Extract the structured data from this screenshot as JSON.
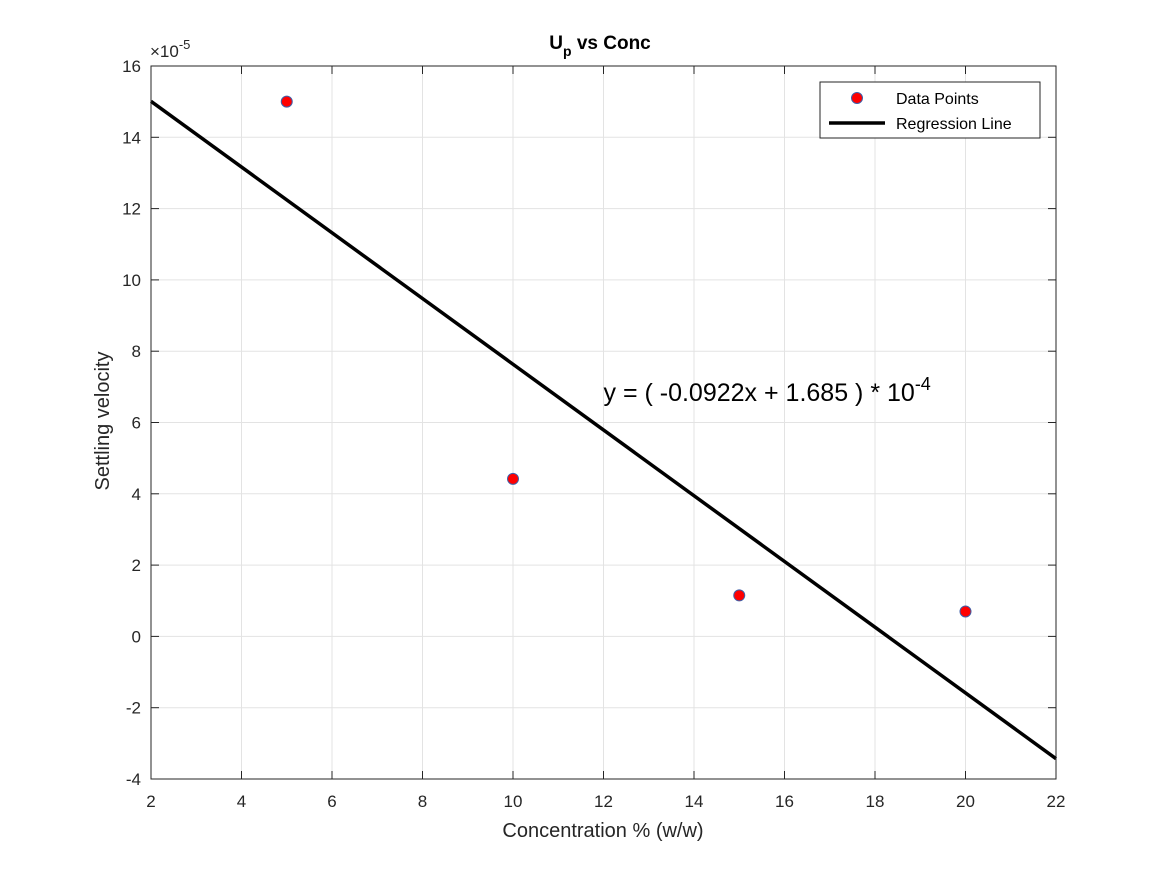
{
  "chart_data": {
    "type": "scatter",
    "title": "U",
    "title_subscript": "p",
    "title_rest": " vs Conc",
    "xlabel": "Concentration % (w/w)",
    "ylabel": "Settling velocity",
    "y_exponent_base": "×10",
    "y_exponent": "-5",
    "xlim": [
      2,
      22
    ],
    "ylim": [
      -4,
      16
    ],
    "xticks": [
      2,
      4,
      6,
      8,
      10,
      12,
      14,
      16,
      18,
      20,
      22
    ],
    "yticks": [
      -4,
      -2,
      0,
      2,
      4,
      6,
      8,
      10,
      12,
      14,
      16
    ],
    "grid": true,
    "legend_position": "top-right",
    "series": [
      {
        "name": "Data Points",
        "kind": "markers",
        "marker_color": "#ff0000",
        "edge_color": "#3f5fa8",
        "x": [
          5,
          10,
          15,
          20
        ],
        "y": [
          15.0,
          4.42,
          1.15,
          0.7
        ]
      },
      {
        "name": "Regression Line",
        "kind": "line",
        "line_color": "#000000",
        "x": [
          2,
          22
        ],
        "y": [
          15.01,
          -3.43
        ]
      }
    ],
    "annotation": {
      "text": "y = ( -0.0922x + 1.685 ) * 10",
      "superscript": "-4",
      "x": 12,
      "y": 6.6
    }
  }
}
